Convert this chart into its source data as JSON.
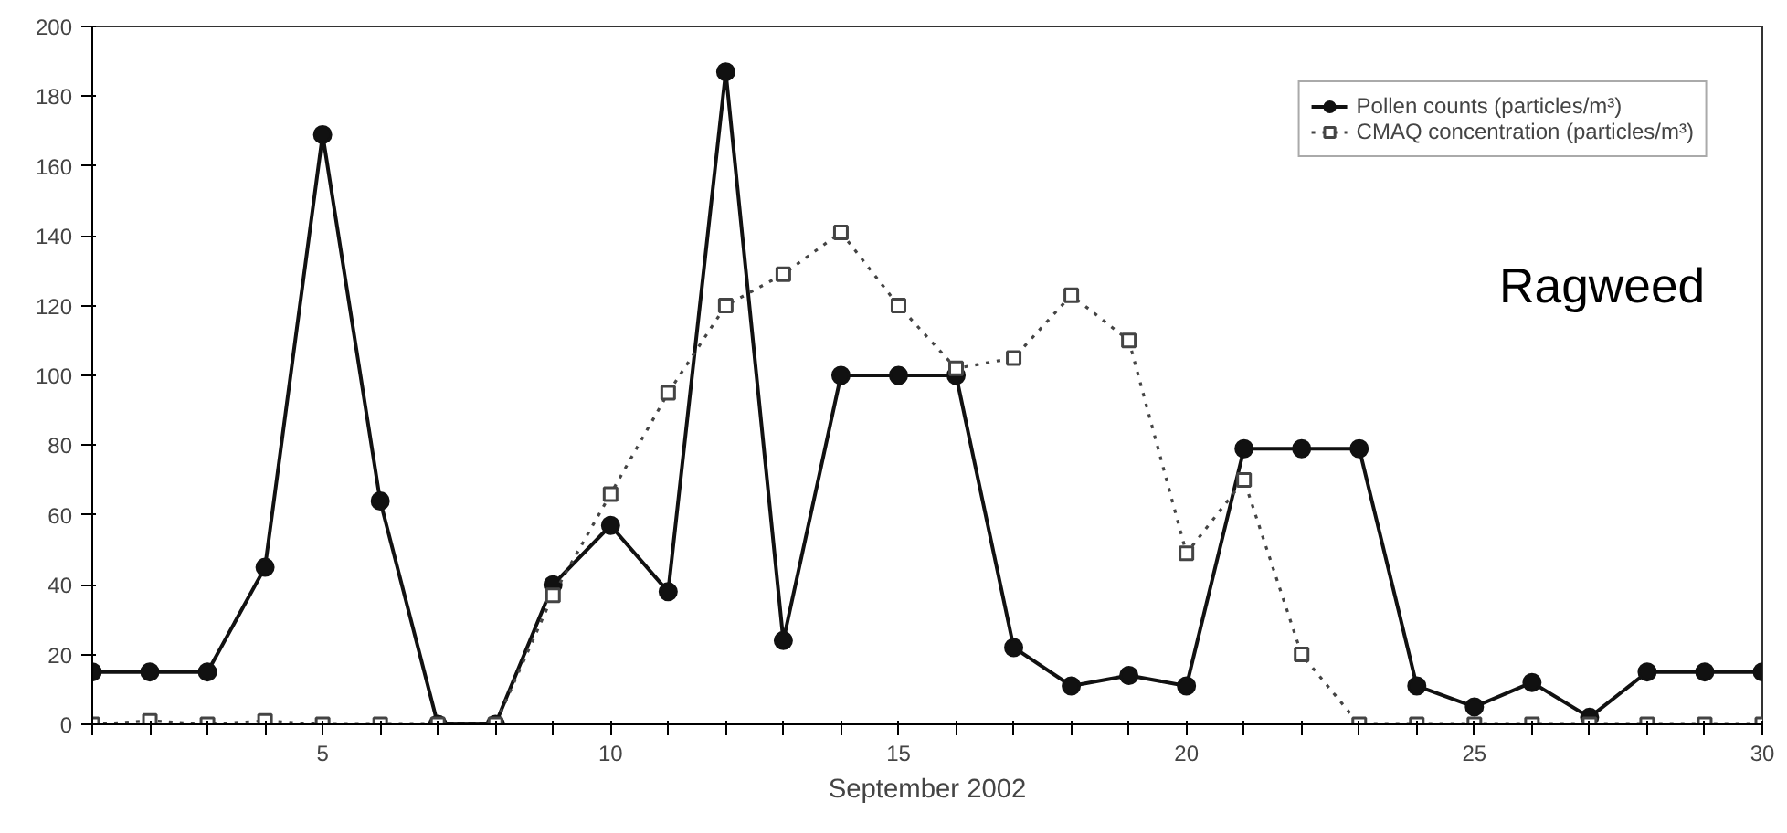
{
  "chart_data": {
    "type": "line",
    "xlabel": "September 2002",
    "x": [
      1,
      2,
      3,
      4,
      5,
      6,
      7,
      8,
      9,
      10,
      11,
      12,
      13,
      14,
      15,
      16,
      17,
      18,
      19,
      20,
      21,
      22,
      23,
      24,
      25,
      26,
      27,
      28,
      29,
      30
    ],
    "series": [
      {
        "name": "Pollen counts (particles/m³)",
        "color": "#111111",
        "marker": "circle",
        "line_style": "solid",
        "values": [
          15,
          15,
          15,
          45,
          169,
          64,
          0,
          0,
          40,
          57,
          38,
          187,
          24,
          100,
          100,
          100,
          22,
          11,
          14,
          11,
          79,
          79,
          79,
          11,
          5,
          12,
          2,
          15,
          15,
          15
        ]
      },
      {
        "name": "CMAQ concentration (particles/m³)",
        "color": "#444444",
        "marker": "square",
        "line_style": "dotted",
        "values": [
          0,
          1,
          0,
          1,
          0,
          0,
          0,
          0,
          37,
          66,
          95,
          120,
          129,
          141,
          120,
          102,
          105,
          123,
          110,
          49,
          70,
          20,
          0,
          0,
          0,
          0,
          0,
          0,
          0,
          0
        ]
      }
    ],
    "xlim": [
      1,
      30
    ],
    "xticks": [
      {
        "value": 1,
        "label": null
      },
      {
        "value": 2,
        "label": null
      },
      {
        "value": 3,
        "label": null
      },
      {
        "value": 4,
        "label": null
      },
      5,
      {
        "value": 6,
        "label": null
      },
      {
        "value": 7,
        "label": null
      },
      {
        "value": 8,
        "label": null
      },
      {
        "value": 9,
        "label": null
      },
      10,
      {
        "value": 11,
        "label": null
      },
      {
        "value": 12,
        "label": null
      },
      {
        "value": 13,
        "label": null
      },
      {
        "value": 14,
        "label": null
      },
      15,
      {
        "value": 16,
        "label": null
      },
      {
        "value": 17,
        "label": null
      },
      {
        "value": 18,
        "label": null
      },
      {
        "value": 19,
        "label": null
      },
      20,
      {
        "value": 21,
        "label": null
      },
      {
        "value": 22,
        "label": null
      },
      {
        "value": 23,
        "label": null
      },
      {
        "value": 24,
        "label": null
      },
      25,
      {
        "value": 26,
        "label": null
      },
      {
        "value": 27,
        "label": null
      },
      {
        "value": 28,
        "label": null
      },
      {
        "value": 29,
        "label": null
      },
      30
    ],
    "ylim": [
      0,
      200
    ],
    "yticks": [
      0,
      20,
      40,
      60,
      80,
      100,
      120,
      140,
      160,
      180,
      200
    ],
    "grid": false,
    "legend": "top right",
    "annotations": [
      "Ragweed"
    ]
  }
}
